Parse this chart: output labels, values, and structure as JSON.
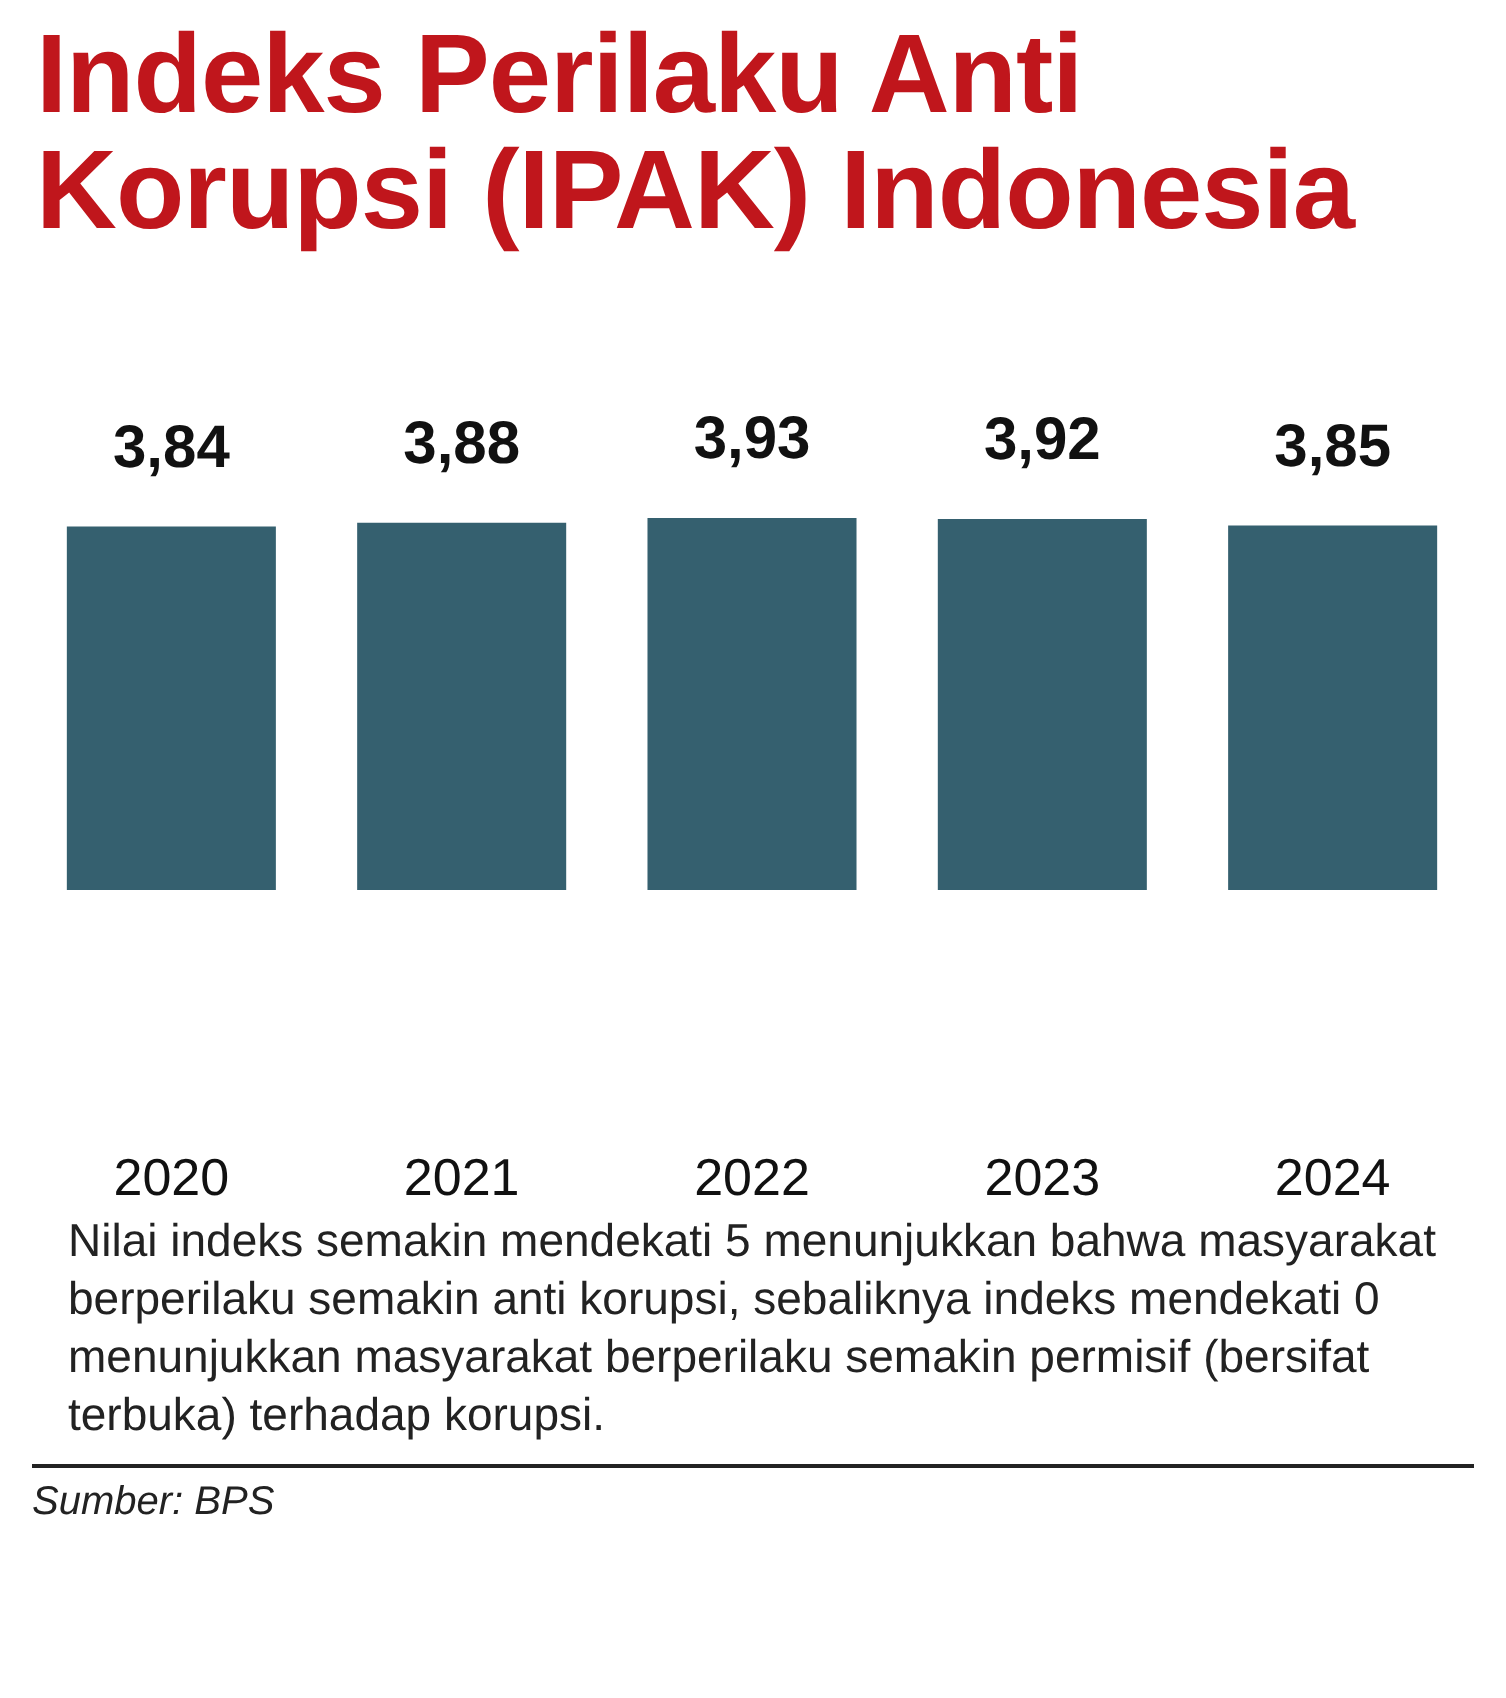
{
  "chart_data": {
    "type": "bar",
    "title": "Indeks Perilaku Anti Korupsi (IPAK) Indonesia",
    "categories": [
      "2020",
      "2021",
      "2022",
      "2023",
      "2024"
    ],
    "values": [
      3.84,
      3.88,
      3.93,
      3.92,
      3.85
    ],
    "color": "#35606f",
    "value_labels": [
      "3,84",
      "3,88",
      "3,93",
      "3,92",
      "3,85"
    ],
    "grid": false,
    "annotations": [
      "Nilai indeks semakin mendekati 5 menunjukkan bahwa masyarakat berperilaku semakin anti korupsi, sebaliknya indeks mendekati 0 menunjukkan masyarakat berperilaku semakin permisif (bersifat terbuka) terhadap korupsi.",
      "Sumber: BPS"
    ]
  }
}
